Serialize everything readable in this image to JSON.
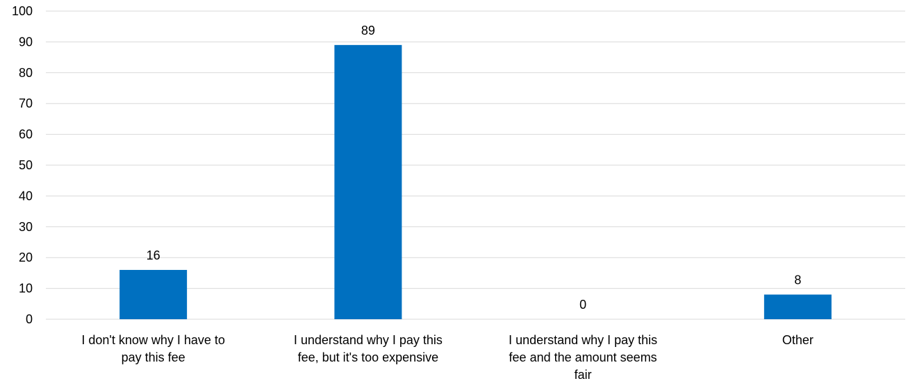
{
  "chart_data": {
    "type": "bar",
    "categories": [
      [
        "I don't know why I have to",
        "pay this fee"
      ],
      [
        "I understand why I pay this",
        "fee, but it's too expensive"
      ],
      [
        "I understand why I pay this",
        "fee and the amount seems",
        "fair"
      ],
      [
        "Other"
      ]
    ],
    "values": [
      16,
      89,
      0,
      8
    ],
    "data_labels": [
      "16",
      "89",
      "0",
      "8"
    ],
    "ylim": [
      0,
      100
    ],
    "yticks": [
      "0",
      "10",
      "20",
      "30",
      "40",
      "50",
      "60",
      "70",
      "80",
      "90",
      "100"
    ],
    "title": "",
    "xlabel": "",
    "ylabel": "",
    "grid": true,
    "legend": "none",
    "bar_color": "#0070C0",
    "grid_color": "#D9D9D9"
  }
}
